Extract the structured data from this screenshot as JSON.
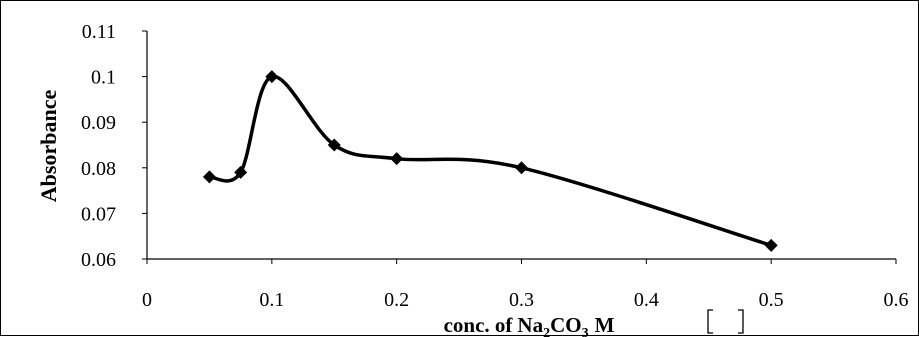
{
  "chart_data": {
    "type": "line",
    "smooth": true,
    "series": [
      {
        "x": [
          0.05,
          0.075,
          0.1,
          0.15,
          0.2,
          0.3,
          0.5
        ],
        "y": [
          0.078,
          0.079,
          0.1,
          0.085,
          0.082,
          0.08,
          0.063
        ],
        "marker": "diamond",
        "color": "#000000"
      }
    ],
    "xlim": [
      0,
      0.6
    ],
    "ylim": [
      0.06,
      0.11
    ],
    "x_ticks": [
      "0",
      "0.1",
      "0.2",
      "0.3",
      "0.4",
      "0.5",
      "0.6"
    ],
    "y_ticks": [
      "0.06",
      "0.07",
      "0.08",
      "0.09",
      "0.1",
      "0.11"
    ],
    "ylabel": "Absorbance",
    "xlabel": {
      "prefix": "conc. of",
      "formula_parts": [
        "Na",
        "2",
        "CO",
        "3"
      ],
      "unit": "M"
    },
    "grid": false,
    "legend": "none"
  }
}
